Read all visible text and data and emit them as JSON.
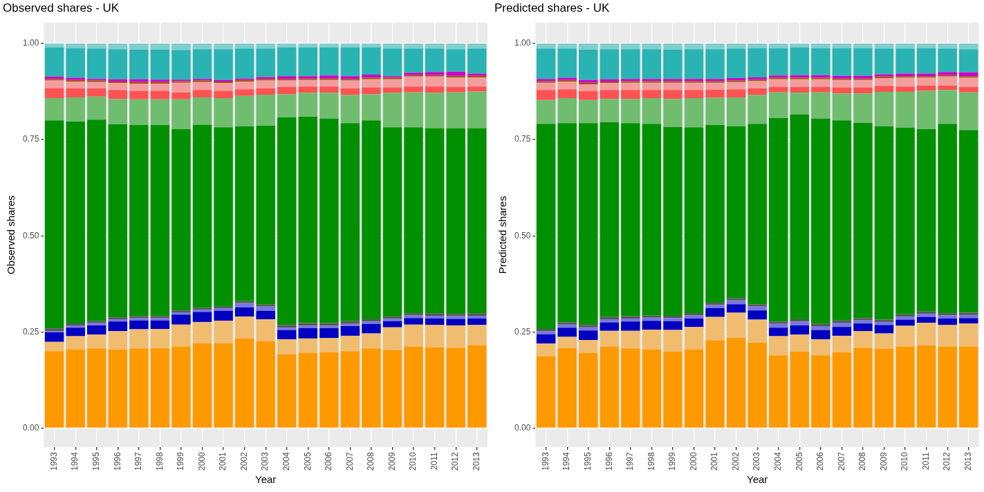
{
  "chart_data": [
    {
      "type": "bar",
      "title": "Observed shares - UK",
      "xlabel": "Year",
      "ylabel": "Observed shares",
      "stacked": true,
      "grid": true,
      "legend": false,
      "categories": [
        "1993",
        "1994",
        "1995",
        "1996",
        "1997",
        "1998",
        "1999",
        "2000",
        "2001",
        "2002",
        "2003",
        "2004",
        "2005",
        "2006",
        "2007",
        "2008",
        "2009",
        "2010",
        "2011",
        "2012",
        "2013"
      ],
      "ylim": [
        -0.05,
        1.055
      ],
      "yticks": [
        {
          "value": 0,
          "label": "0.00"
        },
        {
          "value": 0.25,
          "label": "0.25"
        },
        {
          "value": 0.5,
          "label": "0.50"
        },
        {
          "value": 0.75,
          "label": "0.75"
        },
        {
          "value": 1,
          "label": "1.00"
        }
      ],
      "series": [
        {
          "color": "#ff9900",
          "values": [
            0.2,
            0.205,
            0.207,
            0.204,
            0.207,
            0.208,
            0.212,
            0.22,
            0.22,
            0.233,
            0.226,
            0.192,
            0.195,
            0.197,
            0.2,
            0.207,
            0.203,
            0.212,
            0.21,
            0.209,
            0.215
          ]
        },
        {
          "color": "#f0bd70",
          "values": [
            0.024,
            0.034,
            0.036,
            0.048,
            0.05,
            0.05,
            0.057,
            0.056,
            0.059,
            0.057,
            0.057,
            0.039,
            0.038,
            0.037,
            0.04,
            0.039,
            0.059,
            0.057,
            0.058,
            0.058,
            0.053
          ]
        },
        {
          "color": "#0000c0",
          "values": [
            0.025,
            0.022,
            0.024,
            0.025,
            0.023,
            0.022,
            0.026,
            0.026,
            0.026,
            0.024,
            0.022,
            0.024,
            0.027,
            0.026,
            0.025,
            0.025,
            0.016,
            0.017,
            0.017,
            0.017,
            0.017
          ]
        },
        {
          "color": "#7878e0",
          "values": [
            0.003,
            0.006,
            0.006,
            0.006,
            0.006,
            0.006,
            0.006,
            0.006,
            0.006,
            0.011,
            0.011,
            0.006,
            0.006,
            0.006,
            0.006,
            0.006,
            0.006,
            0.007,
            0.007,
            0.007,
            0.007
          ]
        },
        {
          "color": "#595959",
          "values": [
            0.007,
            0.005,
            0.005,
            0.005,
            0.005,
            0.005,
            0.005,
            0.005,
            0.005,
            0.005,
            0.005,
            0.007,
            0.007,
            0.007,
            0.007,
            0.006,
            0.006,
            0.006,
            0.006,
            0.006,
            0.006
          ]
        },
        {
          "color": "#009000",
          "values": [
            0.541,
            0.525,
            0.524,
            0.502,
            0.497,
            0.497,
            0.471,
            0.476,
            0.466,
            0.455,
            0.465,
            0.54,
            0.537,
            0.532,
            0.515,
            0.517,
            0.492,
            0.483,
            0.482,
            0.483,
            0.482
          ]
        },
        {
          "color": "#70bd70",
          "values": [
            0.058,
            0.063,
            0.06,
            0.066,
            0.067,
            0.067,
            0.078,
            0.071,
            0.076,
            0.079,
            0.081,
            0.06,
            0.062,
            0.067,
            0.073,
            0.068,
            0.09,
            0.091,
            0.092,
            0.093,
            0.095
          ]
        },
        {
          "color": "#ff5252",
          "values": [
            0.026,
            0.023,
            0.021,
            0.023,
            0.022,
            0.022,
            0.018,
            0.019,
            0.019,
            0.017,
            0.016,
            0.019,
            0.016,
            0.016,
            0.017,
            0.018,
            0.014,
            0.015,
            0.016,
            0.014,
            0.013
          ]
        },
        {
          "color": "#f49d9d",
          "values": [
            0.02,
            0.018,
            0.017,
            0.018,
            0.019,
            0.019,
            0.025,
            0.021,
            0.02,
            0.02,
            0.021,
            0.017,
            0.017,
            0.017,
            0.021,
            0.021,
            0.021,
            0.026,
            0.026,
            0.025,
            0.024
          ]
        },
        {
          "color": "#a0580a",
          "values": [
            0.004,
            0.004,
            0.004,
            0.004,
            0.004,
            0.004,
            0.004,
            0.004,
            0.004,
            0.004,
            0.004,
            0.004,
            0.004,
            0.004,
            0.004,
            0.004,
            0.004,
            0.004,
            0.004,
            0.004,
            0.004
          ]
        },
        {
          "color": "#cc00cc",
          "values": [
            0.006,
            0.006,
            0.004,
            0.006,
            0.007,
            0.006,
            0.004,
            0.004,
            0.004,
            0.004,
            0.005,
            0.007,
            0.006,
            0.008,
            0.007,
            0.008,
            0.004,
            0.006,
            0.008,
            0.011,
            0.006
          ]
        },
        {
          "color": "#2ab3b3",
          "values": [
            0.076,
            0.077,
            0.079,
            0.078,
            0.077,
            0.078,
            0.077,
            0.077,
            0.08,
            0.078,
            0.074,
            0.075,
            0.075,
            0.073,
            0.075,
            0.071,
            0.072,
            0.063,
            0.061,
            0.058,
            0.065
          ]
        },
        {
          "color": "#80cece",
          "values": [
            0.01,
            0.012,
            0.013,
            0.015,
            0.016,
            0.016,
            0.017,
            0.015,
            0.015,
            0.013,
            0.013,
            0.01,
            0.01,
            0.01,
            0.01,
            0.01,
            0.013,
            0.013,
            0.013,
            0.015,
            0.013
          ]
        }
      ]
    },
    {
      "type": "bar",
      "title": "Predicted shares - UK",
      "xlabel": "Year",
      "ylabel": "Predicted shares",
      "stacked": true,
      "grid": true,
      "legend": false,
      "categories": [
        "1993",
        "1994",
        "1995",
        "1996",
        "1997",
        "1998",
        "1999",
        "2000",
        "2001",
        "2002",
        "2003",
        "2004",
        "2005",
        "2006",
        "2007",
        "2008",
        "2009",
        "2010",
        "2011",
        "2012",
        "2013"
      ],
      "ylim": [
        -0.05,
        1.055
      ],
      "yticks": [
        {
          "value": 0,
          "label": "0.00"
        },
        {
          "value": 0.25,
          "label": "0.25"
        },
        {
          "value": 0.5,
          "label": "0.50"
        },
        {
          "value": 0.75,
          "label": "0.75"
        },
        {
          "value": 1,
          "label": "1.00"
        }
      ],
      "series": [
        {
          "color": "#ff9900",
          "values": [
            0.187,
            0.208,
            0.195,
            0.212,
            0.207,
            0.205,
            0.199,
            0.205,
            0.228,
            0.235,
            0.222,
            0.189,
            0.199,
            0.189,
            0.197,
            0.209,
            0.206,
            0.212,
            0.215,
            0.212,
            0.212
          ]
        },
        {
          "color": "#f0bd70",
          "values": [
            0.033,
            0.029,
            0.034,
            0.041,
            0.046,
            0.051,
            0.056,
            0.058,
            0.061,
            0.065,
            0.06,
            0.05,
            0.044,
            0.042,
            0.043,
            0.043,
            0.04,
            0.054,
            0.059,
            0.056,
            0.06
          ]
        },
        {
          "color": "#0000c0",
          "values": [
            0.024,
            0.024,
            0.025,
            0.022,
            0.024,
            0.023,
            0.023,
            0.022,
            0.023,
            0.022,
            0.024,
            0.022,
            0.024,
            0.024,
            0.023,
            0.02,
            0.022,
            0.016,
            0.015,
            0.017,
            0.014
          ]
        },
        {
          "color": "#7878e0",
          "values": [
            0.008,
            0.008,
            0.008,
            0.008,
            0.008,
            0.008,
            0.008,
            0.008,
            0.008,
            0.01,
            0.01,
            0.01,
            0.01,
            0.01,
            0.011,
            0.008,
            0.008,
            0.008,
            0.008,
            0.008,
            0.008
          ]
        },
        {
          "color": "#595959",
          "values": [
            0.006,
            0.006,
            0.006,
            0.006,
            0.006,
            0.006,
            0.006,
            0.006,
            0.006,
            0.006,
            0.006,
            0.006,
            0.006,
            0.006,
            0.006,
            0.006,
            0.006,
            0.006,
            0.006,
            0.006,
            0.006
          ]
        },
        {
          "color": "#009000",
          "values": [
            0.533,
            0.518,
            0.525,
            0.506,
            0.502,
            0.498,
            0.491,
            0.483,
            0.462,
            0.447,
            0.469,
            0.529,
            0.533,
            0.534,
            0.52,
            0.508,
            0.503,
            0.485,
            0.474,
            0.492,
            0.475
          ]
        },
        {
          "color": "#70bd70",
          "values": [
            0.062,
            0.065,
            0.06,
            0.061,
            0.063,
            0.067,
            0.073,
            0.076,
            0.071,
            0.075,
            0.075,
            0.067,
            0.056,
            0.068,
            0.07,
            0.076,
            0.089,
            0.093,
            0.1,
            0.088,
            0.098
          ]
        },
        {
          "color": "#ff5252",
          "values": [
            0.026,
            0.023,
            0.023,
            0.023,
            0.023,
            0.021,
            0.023,
            0.021,
            0.021,
            0.021,
            0.017,
            0.014,
            0.015,
            0.014,
            0.016,
            0.016,
            0.016,
            0.014,
            0.014,
            0.012,
            0.014
          ]
        },
        {
          "color": "#f49d9d",
          "values": [
            0.019,
            0.02,
            0.018,
            0.018,
            0.019,
            0.019,
            0.019,
            0.019,
            0.018,
            0.019,
            0.019,
            0.02,
            0.02,
            0.02,
            0.019,
            0.019,
            0.02,
            0.023,
            0.02,
            0.023,
            0.024
          ]
        },
        {
          "color": "#a0580a",
          "values": [
            0.004,
            0.004,
            0.004,
            0.004,
            0.004,
            0.004,
            0.004,
            0.004,
            0.004,
            0.004,
            0.004,
            0.004,
            0.004,
            0.004,
            0.004,
            0.004,
            0.004,
            0.004,
            0.004,
            0.004,
            0.004
          ]
        },
        {
          "color": "#cc00cc",
          "values": [
            0.006,
            0.006,
            0.007,
            0.006,
            0.006,
            0.006,
            0.006,
            0.006,
            0.006,
            0.006,
            0.006,
            0.006,
            0.007,
            0.007,
            0.007,
            0.007,
            0.006,
            0.007,
            0.007,
            0.008,
            0.01
          ]
        },
        {
          "color": "#2ab3b3",
          "values": [
            0.079,
            0.076,
            0.079,
            0.078,
            0.077,
            0.077,
            0.076,
            0.077,
            0.077,
            0.077,
            0.076,
            0.071,
            0.072,
            0.07,
            0.072,
            0.072,
            0.067,
            0.065,
            0.066,
            0.061,
            0.06
          ]
        },
        {
          "color": "#80cece",
          "values": [
            0.013,
            0.013,
            0.016,
            0.015,
            0.015,
            0.015,
            0.016,
            0.015,
            0.015,
            0.013,
            0.012,
            0.012,
            0.01,
            0.012,
            0.012,
            0.012,
            0.013,
            0.013,
            0.012,
            0.013,
            0.015
          ]
        }
      ]
    }
  ]
}
